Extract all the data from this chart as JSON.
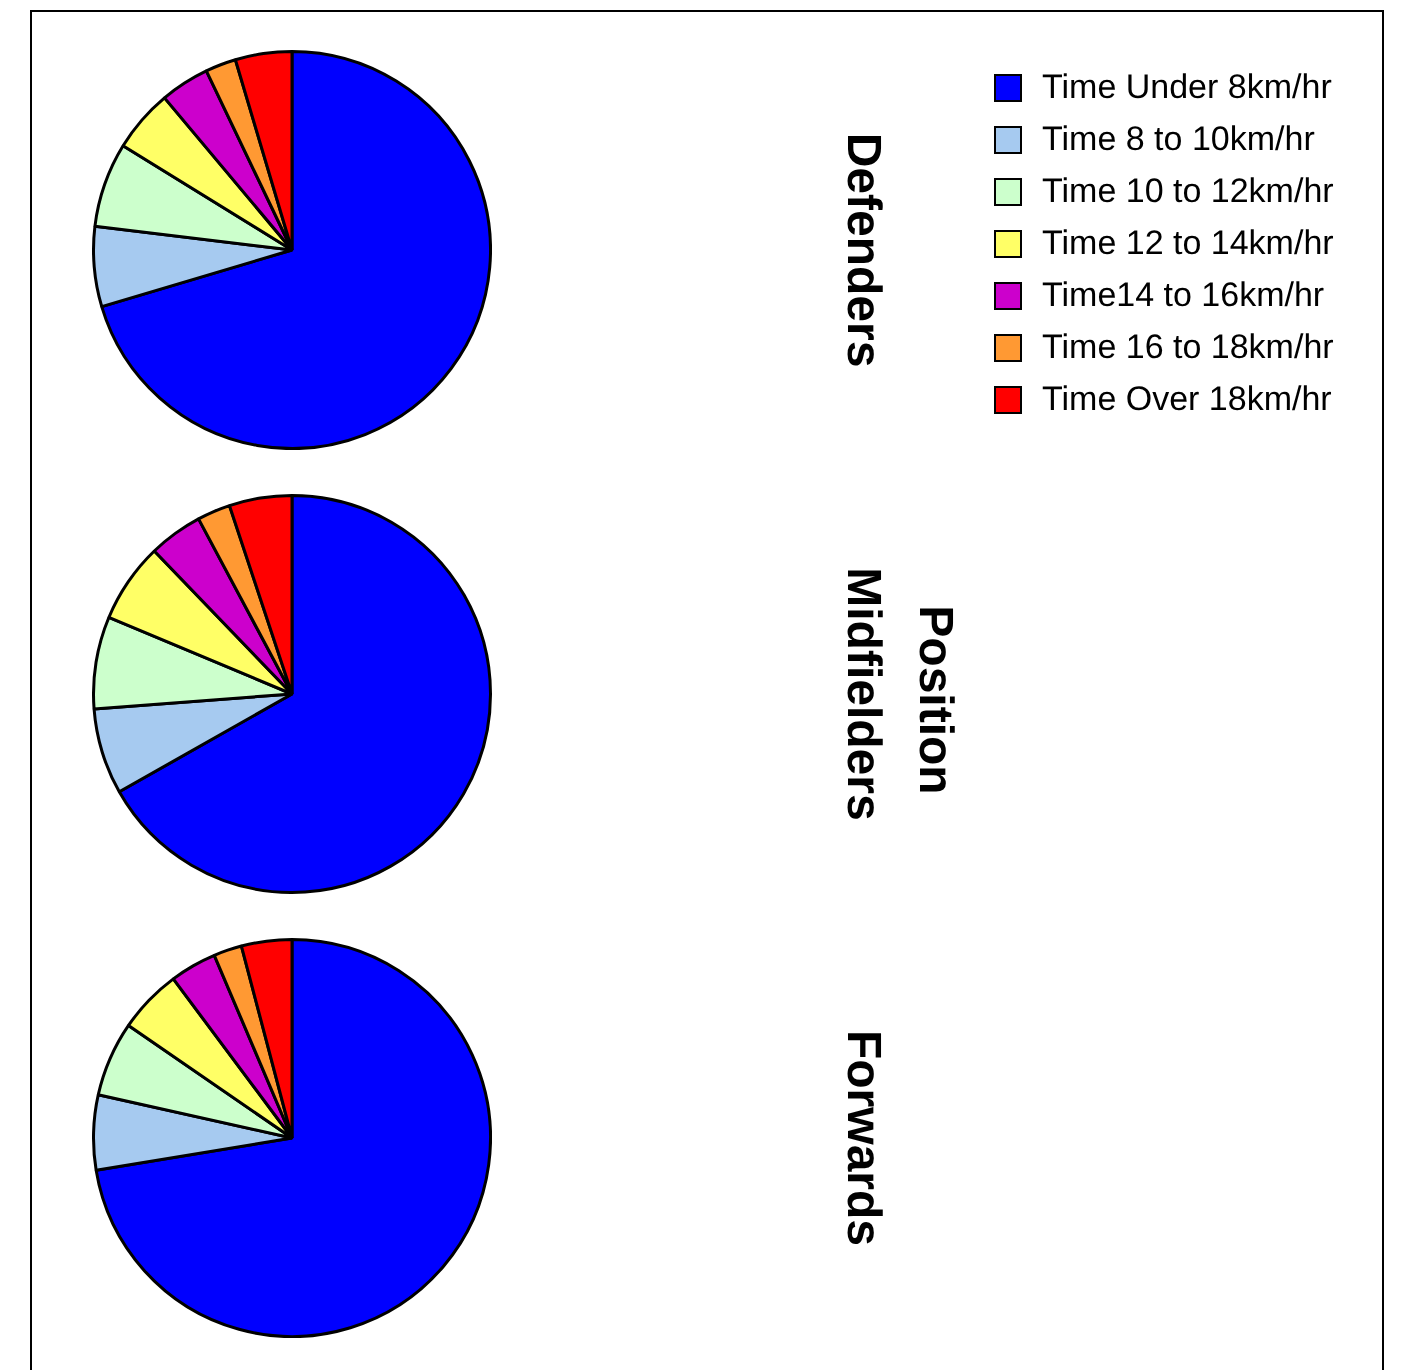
{
  "chart_data": [
    {
      "type": "pie",
      "title": "Defenders",
      "categories": [
        "Time Under 8km/hr",
        "Time 8 to 10km/hr",
        "Time 10 to 12km/hr",
        "Time 12 to 14km/hr",
        "Time14 to 16km/hr",
        "Time 16 to 18km/hr",
        "Time Over 18km/hr"
      ],
      "values": [
        70.4,
        6.5,
        6.9,
        5.1,
        4.0,
        2.5,
        4.6
      ],
      "colors": [
        "#0000ff",
        "#a6caf0",
        "#ccffcc",
        "#ffff66",
        "#cc00cc",
        "#ff9933",
        "#ff0000"
      ],
      "legend": "top right"
    },
    {
      "type": "pie",
      "title": "Midfielders",
      "categories": [
        null,
        null,
        null,
        null,
        null,
        null,
        null
      ],
      "values": [
        66.8,
        7.0,
        7.5,
        6.5,
        4.4,
        2.7,
        5.1
      ],
      "colors": [
        "#0000ff",
        "#a6caf0",
        "#ccffcc",
        "#ffff66",
        "#cc00cc",
        "#ff9933",
        "#ff0000"
      ],
      "annotations": [
        "Position"
      ]
    },
    {
      "type": "pie",
      "title": "Forwards",
      "categories": [
        null,
        null,
        null,
        null,
        null,
        null,
        null
      ],
      "values": [
        72.4,
        6.1,
        6.1,
        5.2,
        3.8,
        2.3,
        4.1
      ],
      "colors": [
        "#0000ff",
        "#a6caf0",
        "#ccffcc",
        "#ffff66",
        "#cc00cc",
        "#ff9933",
        "#ff0000"
      ]
    }
  ]
}
